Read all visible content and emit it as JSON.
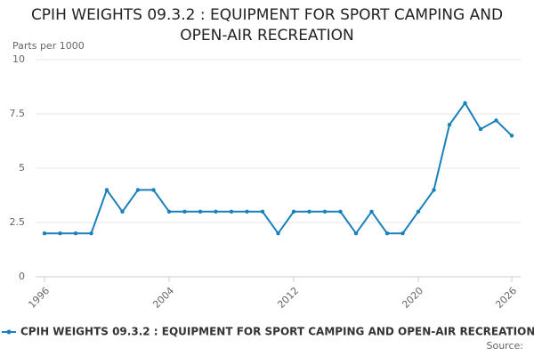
{
  "chart_data": {
    "type": "line",
    "title": "CPIH WEIGHTS 09.3.2 : EQUIPMENT FOR SPORT CAMPING AND OPEN-AIR RECREATION",
    "y_label": "Parts per 1000",
    "source": "Source:",
    "x": [
      1996,
      1997,
      1998,
      1999,
      2000,
      2001,
      2002,
      2003,
      2004,
      2005,
      2006,
      2007,
      2008,
      2009,
      2010,
      2011,
      2012,
      2013,
      2014,
      2015,
      2016,
      2017,
      2018,
      2019,
      2020,
      2021,
      2022,
      2023,
      2024,
      2025,
      2026
    ],
    "series": [
      {
        "name": "CPIH WEIGHTS 09.3.2 : EQUIPMENT FOR SPORT CAMPING AND OPEN-AIR RECREATION",
        "color": "#1a80bb",
        "values": [
          2,
          2,
          2,
          2,
          4,
          3,
          4,
          4,
          3,
          3,
          3,
          3,
          3,
          3,
          3,
          2,
          3,
          3,
          3,
          3,
          2,
          3,
          2,
          2,
          3,
          4,
          7,
          8,
          6.8,
          7.2,
          6.5
        ]
      }
    ],
    "xlim": [
      1996,
      2026
    ],
    "xticks": [
      1996,
      2004,
      2012,
      2020,
      2026
    ],
    "ylim": [
      0,
      10
    ],
    "yticks": [
      0,
      2.5,
      5,
      7.5,
      10
    ],
    "grid": true
  }
}
